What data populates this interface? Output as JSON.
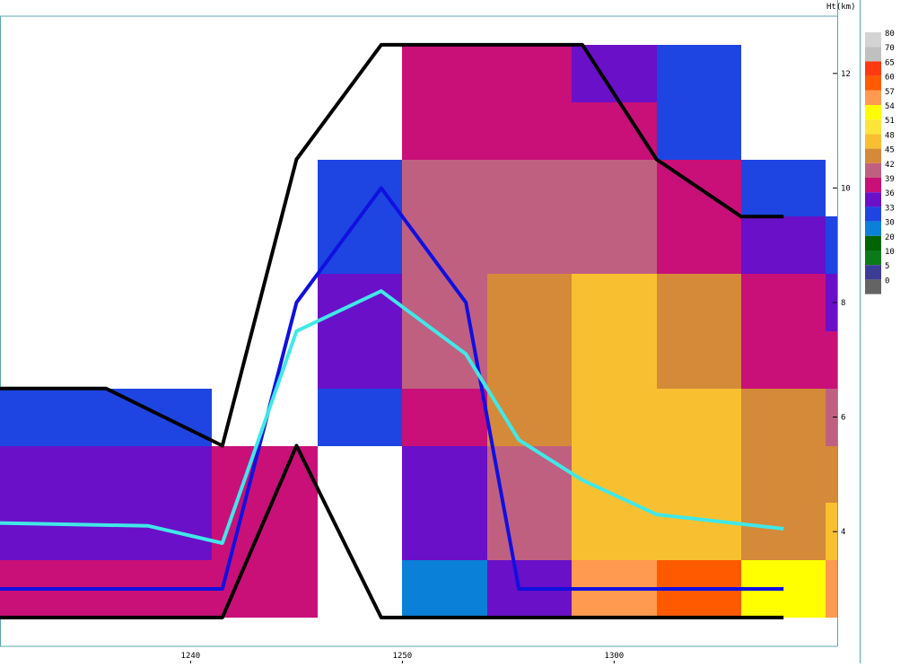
{
  "chart_data": {
    "type": "heatmap",
    "title": "",
    "y_axis_label": "Ht(km)",
    "x_ticks": [
      "1240",
      "1250",
      "1300"
    ],
    "y_ticks": [
      "4",
      "6",
      "8",
      "10",
      "12"
    ],
    "colorbar": [
      {
        "label": "80",
        "color": "#D3D3D3"
      },
      {
        "label": "70",
        "color": "#C0C0C0"
      },
      {
        "label": "65",
        "color": "#FF3A10"
      },
      {
        "label": "60",
        "color": "#FF5A00"
      },
      {
        "label": "57",
        "color": "#FF9A50"
      },
      {
        "label": "54",
        "color": "#FFFF00"
      },
      {
        "label": "51",
        "color": "#FFE43A"
      },
      {
        "label": "48",
        "color": "#F8C030"
      },
      {
        "label": "45",
        "color": "#D48A38"
      },
      {
        "label": "42",
        "color": "#C06080"
      },
      {
        "label": "39",
        "color": "#C81078"
      },
      {
        "label": "36",
        "color": "#6A10C8"
      },
      {
        "label": "33",
        "color": "#1E45E2"
      },
      {
        "label": "30",
        "color": "#0A80D8"
      },
      {
        "label": "20",
        "color": "#006400"
      },
      {
        "label": "10",
        "color": "#0A7A1A"
      },
      {
        "label": "5",
        "color": "#3C3C96"
      },
      {
        "label": "0",
        "color": "#646464"
      }
    ],
    "columns": [
      {
        "time": 1231,
        "cells": [
          {
            "y0": 2.5,
            "y1": 3.5,
            "dbz": 39
          },
          {
            "y0": 3.5,
            "y1": 5.5,
            "dbz": 36
          },
          {
            "y0": 5.5,
            "y1": 6.5,
            "dbz": 33
          }
        ]
      },
      {
        "time": 1236,
        "cells": [
          {
            "y0": 2.5,
            "y1": 3.5,
            "dbz": 39
          },
          {
            "y0": 3.5,
            "y1": 5.5,
            "dbz": 36
          },
          {
            "y0": 5.5,
            "y1": 6.5,
            "dbz": 33
          }
        ]
      },
      {
        "time": 1241,
        "cells": [
          {
            "y0": 2.5,
            "y1": 5.5,
            "dbz": 39
          }
        ]
      },
      {
        "time": 1246,
        "cells": [
          {
            "y0": 5.5,
            "y1": 6.5,
            "dbz": 33
          },
          {
            "y0": 6.5,
            "y1": 8.5,
            "dbz": 36
          },
          {
            "y0": 8.5,
            "y1": 10.5,
            "dbz": 33
          }
        ]
      },
      {
        "time": 1250,
        "cells": [
          {
            "y0": 2.5,
            "y1": 3.5,
            "dbz": 30
          },
          {
            "y0": 3.5,
            "y1": 5.5,
            "dbz": 36
          },
          {
            "y0": 5.5,
            "y1": 6.5,
            "dbz": 39
          },
          {
            "y0": 6.5,
            "y1": 10.5,
            "dbz": 42
          },
          {
            "y0": 10.5,
            "y1": 12.5,
            "dbz": 39
          }
        ]
      },
      {
        "time": 1254,
        "cells": [
          {
            "y0": 2.5,
            "y1": 3.5,
            "dbz": 36
          },
          {
            "y0": 3.5,
            "y1": 5.5,
            "dbz": 42
          },
          {
            "y0": 5.5,
            "y1": 8.5,
            "dbz": 45
          },
          {
            "y0": 8.5,
            "y1": 10.5,
            "dbz": 42
          },
          {
            "y0": 10.5,
            "y1": 12.5,
            "dbz": 39
          }
        ]
      },
      {
        "time": 1258,
        "cells": [
          {
            "y0": 2.5,
            "y1": 3.5,
            "dbz": 57
          },
          {
            "y0": 3.5,
            "y1": 8.5,
            "dbz": 48
          },
          {
            "y0": 8.5,
            "y1": 10.5,
            "dbz": 42
          },
          {
            "y0": 10.5,
            "y1": 11.5,
            "dbz": 39
          },
          {
            "y0": 11.5,
            "y1": 12.5,
            "dbz": 36
          }
        ]
      },
      {
        "time": 1302,
        "cells": [
          {
            "y0": 2.5,
            "y1": 3.5,
            "dbz": 60
          },
          {
            "y0": 3.5,
            "y1": 6.5,
            "dbz": 48
          },
          {
            "y0": 6.5,
            "y1": 8.5,
            "dbz": 45
          },
          {
            "y0": 8.5,
            "y1": 10.5,
            "dbz": 39
          },
          {
            "y0": 10.5,
            "y1": 12.5,
            "dbz": 33
          }
        ]
      },
      {
        "time": 1306,
        "cells": [
          {
            "y0": 2.5,
            "y1": 3.5,
            "dbz": 54
          },
          {
            "y0": 3.5,
            "y1": 6.5,
            "dbz": 45
          },
          {
            "y0": 6.5,
            "y1": 8.5,
            "dbz": 39
          },
          {
            "y0": 8.5,
            "y1": 9.5,
            "dbz": 36
          },
          {
            "y0": 9.5,
            "y1": 10.5,
            "dbz": 33
          }
        ]
      },
      {
        "time": 1310,
        "cells": [
          {
            "y0": 2.5,
            "y1": 3.5,
            "dbz": 57
          },
          {
            "y0": 3.5,
            "y1": 4.5,
            "dbz": 48
          },
          {
            "y0": 4.5,
            "y1": 5.5,
            "dbz": 45
          },
          {
            "y0": 5.5,
            "y1": 6.5,
            "dbz": 42
          },
          {
            "y0": 6.5,
            "y1": 7.5,
            "dbz": 39
          },
          {
            "y0": 7.5,
            "y1": 8.5,
            "dbz": 36
          },
          {
            "y0": 8.5,
            "y1": 9.5,
            "dbz": 33
          }
        ]
      }
    ],
    "series": [
      {
        "color": "#000000",
        "points": [
          [
            1231,
            6.5
          ],
          [
            1236,
            6.5
          ],
          [
            1241.5,
            5.5
          ],
          [
            1245,
            10.5
          ],
          [
            1249,
            12.5
          ],
          [
            1258.5,
            12.5
          ],
          [
            1262,
            10.5
          ],
          [
            1266,
            9.5
          ],
          [
            1268,
            9.5
          ]
        ]
      },
      {
        "color": "#000000",
        "points": [
          [
            1231,
            2.5
          ],
          [
            1241.5,
            2.5
          ],
          [
            1245,
            5.5
          ],
          [
            1249,
            2.5
          ],
          [
            1268,
            2.5
          ]
        ]
      },
      {
        "color": "#1010E0",
        "points": [
          [
            1231,
            3.0
          ],
          [
            1241.5,
            3.0
          ],
          [
            1245,
            8.0
          ],
          [
            1249,
            10.0
          ],
          [
            1253,
            8.0
          ],
          [
            1255.5,
            3.0
          ],
          [
            1268,
            3.0
          ]
        ]
      },
      {
        "color": "#40E8E8",
        "points": [
          [
            1231,
            4.15
          ],
          [
            1238,
            4.1
          ],
          [
            1241.5,
            3.8
          ],
          [
            1245,
            7.5
          ],
          [
            1249,
            8.2
          ],
          [
            1253,
            7.1
          ],
          [
            1255.5,
            5.6
          ],
          [
            1258.5,
            4.9
          ],
          [
            1262,
            4.3
          ],
          [
            1268,
            4.05
          ]
        ]
      }
    ]
  }
}
